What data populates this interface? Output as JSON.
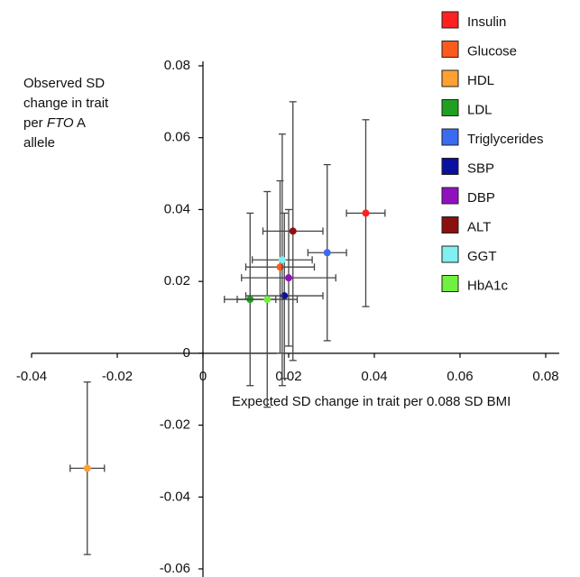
{
  "chart_data": {
    "type": "scatter",
    "y_label": {
      "line1": "Observed SD",
      "line2": "change in trait",
      "line3_pre": "per",
      "line3_italic": "FTO",
      "line3_post": "A",
      "line4": "allele"
    },
    "x_label": "Expected SD change in trait per 0.088 SD BMI",
    "xlim": [
      -0.04,
      0.08
    ],
    "xticks": [
      -0.04,
      -0.02,
      0,
      0.02,
      0.04,
      0.06,
      0.08
    ],
    "ylim": [
      -0.06,
      0.08
    ],
    "yticks": [
      -0.06,
      -0.04,
      -0.02,
      0,
      0.02,
      0.04,
      0.06,
      0.08
    ],
    "series": [
      {
        "name": "Insulin",
        "color": "#ff2020",
        "x": [
          0.038
        ],
        "values": [
          0.039
        ],
        "xerr": [
          0.0045
        ],
        "yerr": [
          0.026
        ]
      },
      {
        "name": "Glucose",
        "color": "#ff5a1e",
        "x": [
          0.018
        ],
        "values": [
          0.024
        ],
        "xerr": [
          0.008
        ],
        "yerr": [
          0.024
        ]
      },
      {
        "name": "HDL",
        "color": "#ffa030",
        "x": [
          -0.027
        ],
        "values": [
          -0.032
        ],
        "xerr": [
          0.004
        ],
        "yerr": [
          0.024
        ]
      },
      {
        "name": "LDL",
        "color": "#20a020",
        "x": [
          0.011
        ],
        "values": [
          0.015
        ],
        "xerr": [
          0.006
        ],
        "yerr": [
          0.024
        ]
      },
      {
        "name": "Triglycerides",
        "color": "#3a6cf0",
        "x": [
          0.029
        ],
        "values": [
          0.028
        ],
        "xerr": [
          0.0045
        ],
        "yerr": [
          0.0245
        ]
      },
      {
        "name": "SBP",
        "color": "#0a10a0",
        "x": [
          0.019
        ],
        "values": [
          0.016
        ],
        "xerr": [
          0.009
        ],
        "yerr": [
          0.023
        ]
      },
      {
        "name": "DBP",
        "color": "#9010c0",
        "x": [
          0.02
        ],
        "values": [
          0.021
        ],
        "xerr": [
          0.011
        ],
        "yerr": [
          0.019
        ]
      },
      {
        "name": "ALT",
        "color": "#8b1010",
        "x": [
          0.021
        ],
        "values": [
          0.034
        ],
        "xerr": [
          0.007
        ],
        "yerr": [
          0.036
        ]
      },
      {
        "name": "GGT",
        "color": "#80f0f0",
        "x": [
          0.0185
        ],
        "values": [
          0.026
        ],
        "xerr": [
          0.007
        ],
        "yerr": [
          0.035
        ]
      },
      {
        "name": "HbA1c",
        "color": "#70f040",
        "x": [
          0.015
        ],
        "values": [
          0.015
        ],
        "xerr": [
          0.007
        ],
        "yerr": [
          0.03
        ]
      }
    ]
  }
}
